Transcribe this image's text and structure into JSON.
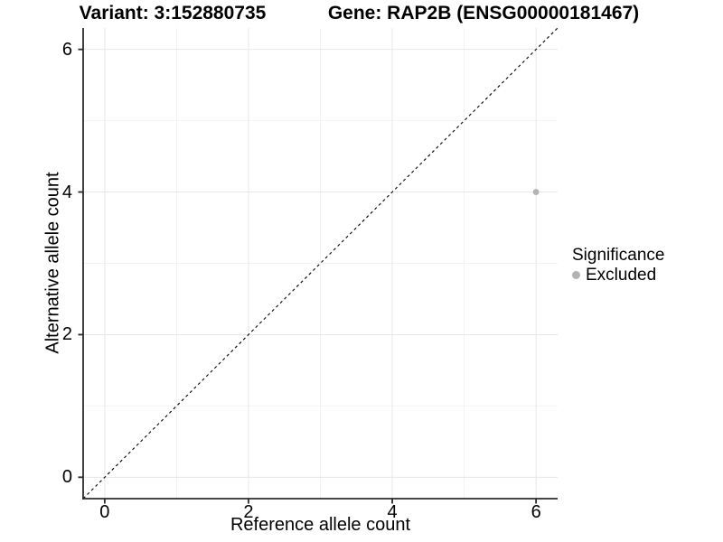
{
  "titles": {
    "variant": "Variant: 3:152880735",
    "gene": "Gene: RAP2B (ENSG00000181467)"
  },
  "legend": {
    "title": "Significance",
    "items": [
      {
        "label": "Excluded",
        "color": "#b3b3b3"
      }
    ]
  },
  "chart_data": {
    "type": "scatter",
    "title_left": "Variant: 3:152880735",
    "title_right": "Gene: RAP2B (ENSG00000181467)",
    "xlabel": "Reference allele count",
    "ylabel": "Alternative allele count",
    "xlim": [
      -0.3,
      6.3
    ],
    "ylim": [
      -0.3,
      6.3
    ],
    "x_ticks": [
      0,
      2,
      4,
      6
    ],
    "y_ticks": [
      0,
      2,
      4,
      6
    ],
    "minor_ticks": [
      1,
      3,
      5
    ],
    "grid": "major and minor, light gray, white panel background",
    "legend_position": "right",
    "series": [
      {
        "name": "Excluded",
        "color": "#b3b3b3",
        "points": [
          {
            "x": 6,
            "y": 4
          }
        ]
      }
    ],
    "reference_line": {
      "kind": "identity y=x",
      "style": "dashed",
      "color": "#000000"
    }
  },
  "colors": {
    "background": "#ffffff",
    "axis_line": "#2b2b2b",
    "grid_major": "#e6e6e6",
    "grid_minor": "#f2f2f2",
    "text": "#000000",
    "point": "#b3b3b3"
  }
}
